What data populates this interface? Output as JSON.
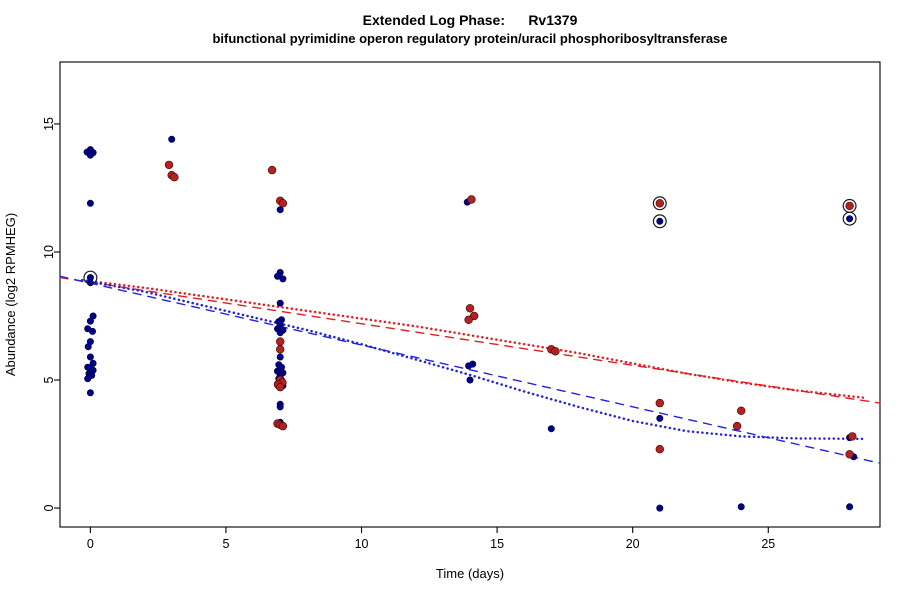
{
  "chart": {
    "title_line1": "Extended Log Phase:      Rv1379",
    "title_line2": "bifunctional pyrimidine operon regulatory protein/uracil phosphoribosyltransferase"
  },
  "chart_data": {
    "type": "scatter",
    "title": "Extended Log Phase:      Rv1379",
    "subtitle": "bifunctional pyrimidine operon regulatory protein/uracil phosphoribosyltransferase",
    "xlabel": "Time  (days)",
    "ylabel": "Abundance  (log2 RPMHEG)",
    "xlim": [
      -1.12,
      29.12
    ],
    "ylim": [
      -0.74,
      17.42
    ],
    "xticks": [
      0,
      5,
      10,
      15,
      20,
      25
    ],
    "yticks": [
      0,
      5,
      10,
      15
    ],
    "grid": false,
    "legend": "none",
    "colors": {
      "blue_points": "#00008B",
      "red_points": "#B22222",
      "blue_line": "#2222DD",
      "red_line": "#E02020"
    },
    "series": [
      {
        "name": "series-blue",
        "color": "#00008B",
        "edge": "#000040",
        "size": 3.2,
        "points": [
          [
            0,
            14.0
          ],
          [
            -0.12,
            13.9
          ],
          [
            0.1,
            13.88
          ],
          [
            0,
            13.78
          ],
          [
            0,
            11.9
          ],
          [
            0,
            9.0
          ],
          [
            0,
            8.8
          ],
          [
            0.1,
            7.5
          ],
          [
            0,
            7.3
          ],
          [
            -0.1,
            7.0
          ],
          [
            0.08,
            6.9
          ],
          [
            0,
            6.5
          ],
          [
            -0.08,
            6.3
          ],
          [
            0,
            5.9
          ],
          [
            0.1,
            5.65
          ],
          [
            -0.1,
            5.5
          ],
          [
            0,
            5.45
          ],
          [
            0.1,
            5.38
          ],
          [
            -0.05,
            5.25
          ],
          [
            0.05,
            5.18
          ],
          [
            -0.1,
            5.05
          ],
          [
            0,
            4.5
          ],
          [
            3,
            14.4
          ],
          [
            7,
            11.65
          ],
          [
            7,
            9.2
          ],
          [
            6.9,
            9.05
          ],
          [
            7.1,
            8.95
          ],
          [
            7,
            8.0
          ],
          [
            7.05,
            7.35
          ],
          [
            6.95,
            7.28
          ],
          [
            7,
            7.15
          ],
          [
            6.9,
            7.0
          ],
          [
            7.1,
            6.95
          ],
          [
            7,
            6.85
          ],
          [
            7,
            5.9
          ],
          [
            6.95,
            5.6
          ],
          [
            7.05,
            5.5
          ],
          [
            7,
            5.42
          ],
          [
            6.9,
            5.35
          ],
          [
            7.1,
            5.28
          ],
          [
            7,
            5.18
          ],
          [
            6.95,
            5.05
          ],
          [
            7.05,
            5.0
          ],
          [
            7,
            4.9
          ],
          [
            6.9,
            4.85
          ],
          [
            7.1,
            4.78
          ],
          [
            7,
            4.05
          ],
          [
            7,
            3.95
          ],
          [
            7,
            3.35
          ],
          [
            13.9,
            11.95
          ],
          [
            14.1,
            5.62
          ],
          [
            13.95,
            5.55
          ],
          [
            14,
            5.0
          ],
          [
            17,
            3.1
          ],
          [
            21,
            11.2
          ],
          [
            21,
            3.5
          ],
          [
            21,
            0.0
          ],
          [
            24,
            0.05
          ],
          [
            28,
            11.3
          ],
          [
            28,
            2.75
          ],
          [
            28.15,
            2.0
          ],
          [
            28,
            0.05
          ]
        ]
      },
      {
        "name": "series-red",
        "color": "#B22222",
        "edge": "#400000",
        "size": 3.9,
        "points": [
          [
            2.9,
            13.4
          ],
          [
            3,
            13.0
          ],
          [
            3.1,
            12.92
          ],
          [
            6.7,
            13.2
          ],
          [
            7,
            12.0
          ],
          [
            7.1,
            11.9
          ],
          [
            7,
            6.5
          ],
          [
            7,
            6.2
          ],
          [
            7,
            5.0
          ],
          [
            7.08,
            4.9
          ],
          [
            6.92,
            4.82
          ],
          [
            7,
            4.72
          ],
          [
            6.9,
            3.3
          ],
          [
            7,
            3.25
          ],
          [
            7.1,
            3.2
          ],
          [
            14.05,
            12.05
          ],
          [
            14,
            7.8
          ],
          [
            14.15,
            7.5
          ],
          [
            13.95,
            7.35
          ],
          [
            17,
            6.2
          ],
          [
            17.15,
            6.12
          ],
          [
            21,
            11.9
          ],
          [
            21,
            4.1
          ],
          [
            21,
            2.3
          ],
          [
            24,
            3.8
          ],
          [
            23.85,
            3.2
          ],
          [
            28,
            11.8
          ],
          [
            28.1,
            2.8
          ],
          [
            28,
            2.1
          ]
        ]
      }
    ],
    "highlighted_points": [
      [
        0,
        9.0
      ],
      [
        21,
        11.9
      ],
      [
        21,
        11.2
      ],
      [
        28,
        11.8
      ],
      [
        28,
        11.3
      ]
    ],
    "lines": [
      {
        "name": "red-linear-fit",
        "style": "dashed",
        "color": "#E02020",
        "points": [
          [
            -1.12,
            9.0
          ],
          [
            29.12,
            4.1
          ]
        ]
      },
      {
        "name": "blue-linear-fit",
        "style": "dashed",
        "color": "#2222DD",
        "points": [
          [
            -1.12,
            9.05
          ],
          [
            29.12,
            1.75
          ]
        ]
      },
      {
        "name": "red-smooth-fit",
        "style": "dotted",
        "color": "#E02020",
        "points": [
          [
            -0.3,
            8.9
          ],
          [
            2,
            8.6
          ],
          [
            4,
            8.3
          ],
          [
            6,
            8.0
          ],
          [
            8,
            7.7
          ],
          [
            10,
            7.4
          ],
          [
            12,
            7.1
          ],
          [
            14,
            6.75
          ],
          [
            16,
            6.4
          ],
          [
            18,
            6.05
          ],
          [
            20,
            5.65
          ],
          [
            22,
            5.25
          ],
          [
            24,
            4.9
          ],
          [
            26,
            4.6
          ],
          [
            28.6,
            4.3
          ]
        ]
      },
      {
        "name": "blue-smooth-fit",
        "style": "dotted",
        "color": "#2222DD",
        "points": [
          [
            -0.3,
            8.9
          ],
          [
            2,
            8.45
          ],
          [
            4,
            7.95
          ],
          [
            6,
            7.45
          ],
          [
            8,
            6.95
          ],
          [
            10,
            6.4
          ],
          [
            12,
            5.8
          ],
          [
            14,
            5.2
          ],
          [
            16,
            4.55
          ],
          [
            18,
            3.95
          ],
          [
            20,
            3.4
          ],
          [
            22,
            3.0
          ],
          [
            24,
            2.8
          ],
          [
            26,
            2.72
          ],
          [
            28.6,
            2.7
          ]
        ]
      }
    ]
  }
}
